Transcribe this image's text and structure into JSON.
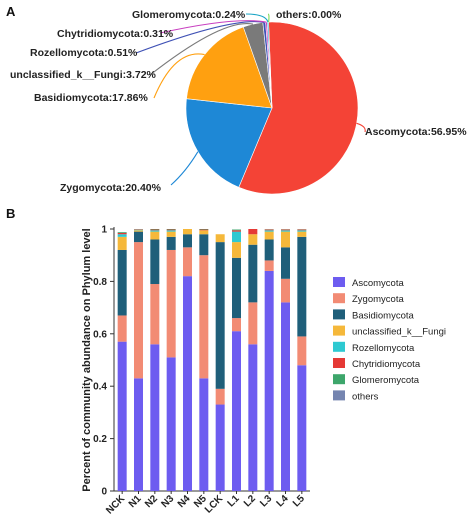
{
  "panels": {
    "a": "A",
    "b": "B"
  },
  "chart_data": [
    {
      "type": "pie",
      "slices": [
        {
          "name": "Ascomycota",
          "label": "Ascomycota:56.95%",
          "value": 56.95,
          "color": "#f44336"
        },
        {
          "name": "Zygomycota",
          "label": "Zygomycota:20.40%",
          "value": 20.4,
          "color": "#1e88d6"
        },
        {
          "name": "Basidiomycota",
          "label": "Basidiomycota:17.86%",
          "value": 17.86,
          "color": "#ffa010"
        },
        {
          "name": "unclassified_k__Fungi",
          "label": "unclassified_k__Fungi:3.72%",
          "value": 3.72,
          "color": "#7a7a7a"
        },
        {
          "name": "Rozellomycota",
          "label": "Rozellomycota:0.51%",
          "value": 0.51,
          "color": "#3f51b5"
        },
        {
          "name": "Chytridiomycota",
          "label": "Chytridiomycota:0.31%",
          "value": 0.31,
          "color": "#c83fc0"
        },
        {
          "name": "Glomeromycota",
          "label": "Glomeromycota:0.24%",
          "value": 0.24,
          "color": "#1aa5c5"
        },
        {
          "name": "others",
          "label": "others:0.00%",
          "value": 0.0,
          "color": "#7ed957"
        }
      ]
    },
    {
      "type": "bar",
      "stacked": true,
      "categories": [
        "NCK",
        "N1",
        "N2",
        "N3",
        "N4",
        "N5",
        "LCK",
        "L1",
        "L2",
        "L3",
        "L4",
        "L5"
      ],
      "ylabel": "Percent of community abundance on Phylum level",
      "ylim": [
        0,
        1
      ],
      "yticks": [
        "0",
        "0.2",
        "0.4",
        "0.6",
        "0.8",
        "1"
      ],
      "legend_position": "right",
      "series": [
        {
          "name": "Ascomycota",
          "color": "#6d5cf0",
          "values": [
            0.57,
            0.43,
            0.56,
            0.51,
            0.82,
            0.43,
            0.33,
            0.61,
            0.56,
            0.84,
            0.72,
            0.48
          ]
        },
        {
          "name": "Zygomycota",
          "color": "#f28b74",
          "values": [
            0.1,
            0.52,
            0.23,
            0.41,
            0.11,
            0.47,
            0.06,
            0.05,
            0.16,
            0.04,
            0.09,
            0.11
          ]
        },
        {
          "name": "Basidiomycota",
          "color": "#1f5f7a",
          "values": [
            0.25,
            0.04,
            0.17,
            0.05,
            0.05,
            0.08,
            0.56,
            0.23,
            0.22,
            0.08,
            0.12,
            0.38
          ]
        },
        {
          "name": "unclassified_k__Fungi",
          "color": "#f5b83a",
          "values": [
            0.05,
            0.005,
            0.03,
            0.02,
            0.02,
            0.015,
            0.03,
            0.06,
            0.04,
            0.03,
            0.06,
            0.02
          ]
        },
        {
          "name": "Rozellomycota",
          "color": "#2ec9d1",
          "values": [
            0.01,
            0.002,
            0.005,
            0.005,
            0.0,
            0.0,
            0.0,
            0.04,
            0.0,
            0.005,
            0.005,
            0.005
          ]
        },
        {
          "name": "Chytridiomycota",
          "color": "#e53935",
          "values": [
            0.005,
            0.002,
            0.003,
            0.003,
            0.0,
            0.003,
            0.0,
            0.005,
            0.02,
            0.003,
            0.003,
            0.003
          ]
        },
        {
          "name": "Glomeromycota",
          "color": "#3da66b",
          "values": [
            0.003,
            0.001,
            0.002,
            0.002,
            0.0,
            0.002,
            0.0,
            0.003,
            0.0,
            0.001,
            0.001,
            0.001
          ]
        },
        {
          "name": "others",
          "color": "#7585b0",
          "values": [
            0.0,
            0.0,
            0.0,
            0.0,
            0.0,
            0.0,
            0.0,
            0.0,
            0.0,
            0.0,
            0.0,
            0.0
          ]
        }
      ]
    }
  ]
}
